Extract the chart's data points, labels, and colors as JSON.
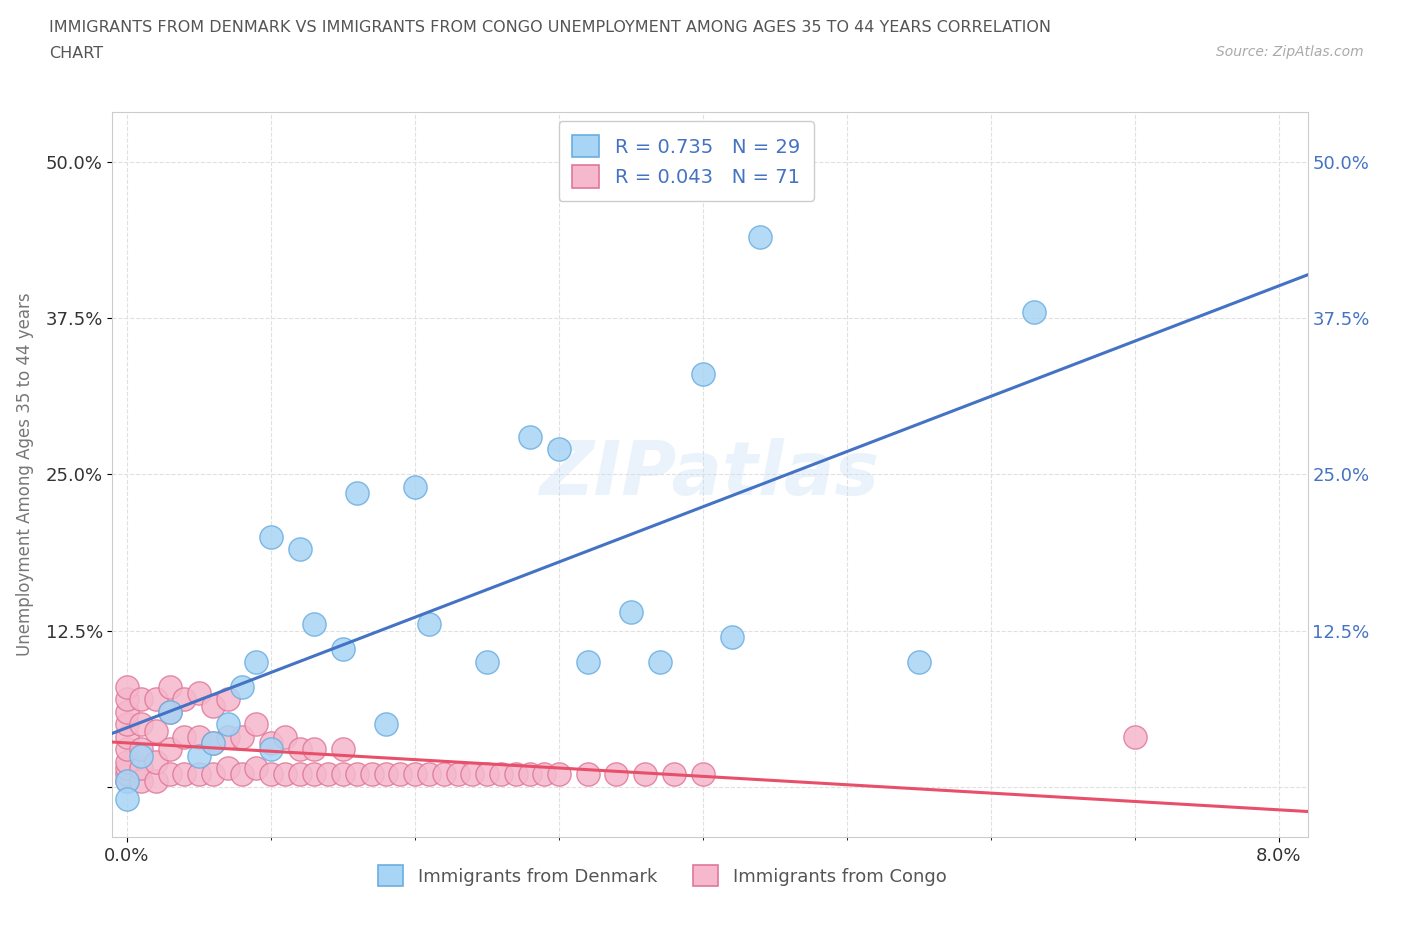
{
  "title_line1": "IMMIGRANTS FROM DENMARK VS IMMIGRANTS FROM CONGO UNEMPLOYMENT AMONG AGES 35 TO 44 YEARS CORRELATION",
  "title_line2": "CHART",
  "source": "Source: ZipAtlas.com",
  "ylabel": "Unemployment Among Ages 35 to 44 years",
  "xlim": [
    -0.001,
    0.082
  ],
  "ylim": [
    -0.04,
    0.54
  ],
  "denmark_color": "#a8d4f5",
  "denmark_edge": "#6aaee0",
  "congo_color": "#f5b8cc",
  "congo_edge": "#e07898",
  "trend_denmark_color": "#4472c4",
  "trend_congo_color": "#e8506a",
  "R_denmark": "0.735",
  "N_denmark": "29",
  "R_congo": "0.043",
  "N_congo": "71",
  "watermark": "ZIPatlas",
  "background_color": "#ffffff",
  "grid_color": "#e0e0e0",
  "title_color": "#555555",
  "tick_color": "#333333",
  "legend_value_color": "#4472c4",
  "legend_text_color": "#555555",
  "dk_x": [
    0.0,
    0.0,
    0.001,
    0.003,
    0.005,
    0.006,
    0.007,
    0.008,
    0.009,
    0.01,
    0.01,
    0.012,
    0.013,
    0.015,
    0.016,
    0.018,
    0.02,
    0.021,
    0.025,
    0.028,
    0.03,
    0.032,
    0.035,
    0.037,
    0.04,
    0.042,
    0.044,
    0.055,
    0.063
  ],
  "dk_y": [
    0.005,
    -0.01,
    0.025,
    0.06,
    0.025,
    0.035,
    0.05,
    0.08,
    0.1,
    0.2,
    0.03,
    0.19,
    0.13,
    0.11,
    0.235,
    0.05,
    0.24,
    0.13,
    0.1,
    0.28,
    0.27,
    0.1,
    0.14,
    0.1,
    0.33,
    0.12,
    0.44,
    0.1,
    0.38
  ],
  "cg_x": [
    0.0,
    0.0,
    0.0,
    0.0,
    0.0,
    0.0,
    0.0,
    0.0,
    0.0,
    0.0,
    0.001,
    0.001,
    0.001,
    0.001,
    0.001,
    0.002,
    0.002,
    0.002,
    0.002,
    0.003,
    0.003,
    0.003,
    0.003,
    0.004,
    0.004,
    0.004,
    0.005,
    0.005,
    0.005,
    0.006,
    0.006,
    0.006,
    0.007,
    0.007,
    0.007,
    0.008,
    0.008,
    0.009,
    0.009,
    0.01,
    0.01,
    0.011,
    0.011,
    0.012,
    0.012,
    0.013,
    0.013,
    0.014,
    0.015,
    0.015,
    0.016,
    0.017,
    0.018,
    0.019,
    0.02,
    0.021,
    0.022,
    0.023,
    0.024,
    0.025,
    0.026,
    0.027,
    0.028,
    0.029,
    0.03,
    0.032,
    0.034,
    0.036,
    0.038,
    0.04,
    0.07
  ],
  "cg_y": [
    0.005,
    0.01,
    0.015,
    0.02,
    0.03,
    0.04,
    0.05,
    0.06,
    0.07,
    0.08,
    0.005,
    0.015,
    0.03,
    0.05,
    0.07,
    0.005,
    0.02,
    0.045,
    0.07,
    0.01,
    0.03,
    0.06,
    0.08,
    0.01,
    0.04,
    0.07,
    0.01,
    0.04,
    0.075,
    0.01,
    0.035,
    0.065,
    0.015,
    0.04,
    0.07,
    0.01,
    0.04,
    0.015,
    0.05,
    0.01,
    0.035,
    0.01,
    0.04,
    0.01,
    0.03,
    0.01,
    0.03,
    0.01,
    0.01,
    0.03,
    0.01,
    0.01,
    0.01,
    0.01,
    0.01,
    0.01,
    0.01,
    0.01,
    0.01,
    0.01,
    0.01,
    0.01,
    0.01,
    0.01,
    0.01,
    0.01,
    0.01,
    0.01,
    0.01,
    0.01,
    0.04
  ]
}
